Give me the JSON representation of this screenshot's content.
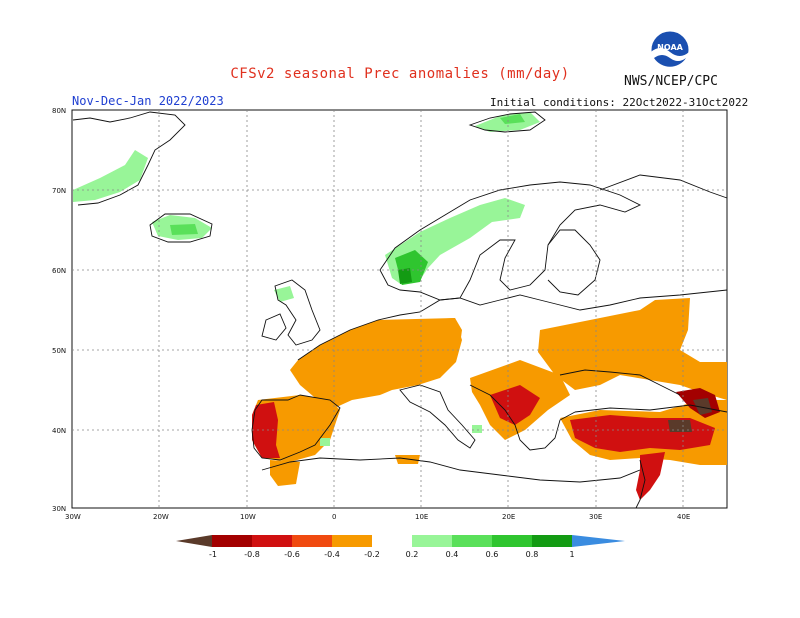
{
  "header": {
    "title": "CFSv2 seasonal Prec anomalies (mm/day)",
    "season": "Nov-Dec-Jan 2022/2023",
    "initial_conditions": "Initial conditions: 22Oct2022-31Oct2022",
    "agency": "NWS/NCEP/CPC",
    "logo_text": "NOAA"
  },
  "map": {
    "latitude_labels": [
      "80N",
      "70N",
      "60N",
      "50N",
      "40N",
      "30N"
    ],
    "longitude_labels": [
      "30W",
      "20W",
      "10W",
      "0",
      "10E",
      "20E",
      "30E",
      "40E"
    ]
  },
  "colorbar": {
    "labels": [
      "-1",
      "-0.8",
      "-0.6",
      "-0.4",
      "-0.2",
      "0.2",
      "0.4",
      "0.6",
      "0.8",
      "1"
    ],
    "colors": [
      "#5a3a2a",
      "#a30000",
      "#d01010",
      "#f04a10",
      "#f79a00",
      "#ffffff",
      "#98f598",
      "#5ae05a",
      "#2fc52f",
      "#139b13",
      "#3a8ce0"
    ]
  }
}
